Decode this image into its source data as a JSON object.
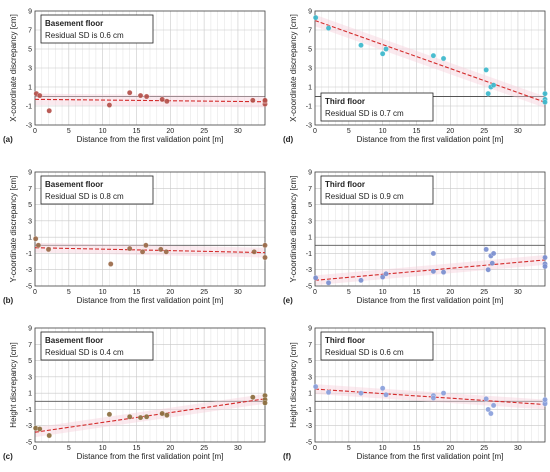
{
  "chart_data": [
    {
      "panel": "(a)",
      "type": "scatter",
      "xlabel": "Distance from the first validation point [m]",
      "ylabel": "X-coordinate discrepancy [cm]",
      "xlim": [
        0,
        34
      ],
      "ylim": [
        -3,
        9
      ],
      "xticks": [
        0,
        5,
        10,
        15,
        20,
        25,
        30
      ],
      "yticks": [
        -3,
        -1,
        1,
        3,
        5,
        7,
        9
      ],
      "grid": true,
      "annotation": {
        "title": "Basement floor",
        "subtitle": "Residual SD is 0.6 cm"
      },
      "point_color": "#b5504a",
      "points": [
        [
          0.2,
          0.3
        ],
        [
          0.7,
          0.1
        ],
        [
          2.1,
          -1.5
        ],
        [
          11.0,
          -0.9
        ],
        [
          14.0,
          0.4
        ],
        [
          15.6,
          0.1
        ],
        [
          16.5,
          0.0
        ],
        [
          18.8,
          -0.3
        ],
        [
          19.5,
          -0.5
        ],
        [
          32.2,
          -0.4
        ],
        [
          34.0,
          -0.8
        ],
        [
          34.0,
          -0.5
        ],
        [
          34.0,
          -0.4
        ]
      ],
      "trend": [
        [
          0,
          -0.3
        ],
        [
          34,
          -0.55
        ]
      ]
    },
    {
      "panel": "(b)",
      "type": "scatter",
      "xlabel": "Distance from the first validation point [m]",
      "ylabel": "Y-coordinate discrepancy [cm]",
      "xlim": [
        0,
        34
      ],
      "ylim": [
        -5,
        9
      ],
      "xticks": [
        0,
        5,
        10,
        15,
        20,
        25,
        30
      ],
      "yticks": [
        -5,
        -3,
        -1,
        1,
        3,
        5,
        7,
        9
      ],
      "grid": true,
      "annotation": {
        "title": "Basement floor",
        "subtitle": "Residual SD is 0.8 cm"
      },
      "point_color": "#9b6a48",
      "points": [
        [
          0.1,
          0.8
        ],
        [
          0.5,
          0.0
        ],
        [
          2.0,
          -0.5
        ],
        [
          11.2,
          -2.3
        ],
        [
          14.0,
          -0.4
        ],
        [
          15.9,
          -0.8
        ],
        [
          16.4,
          0.0
        ],
        [
          18.6,
          -0.5
        ],
        [
          19.4,
          -0.8
        ],
        [
          32.4,
          -0.8
        ],
        [
          34.0,
          0.0
        ],
        [
          34.0,
          -1.5
        ]
      ],
      "trend": [
        [
          0,
          -0.3
        ],
        [
          34,
          -0.9
        ]
      ]
    },
    {
      "panel": "(c)",
      "type": "scatter",
      "xlabel": "Distance from the first validation point [m]",
      "ylabel": "Height discrepancy [cm]",
      "xlim": [
        0,
        34
      ],
      "ylim": [
        -5,
        9
      ],
      "xticks": [
        0,
        5,
        10,
        15,
        20,
        25,
        30
      ],
      "yticks": [
        -5,
        -3,
        -1,
        1,
        3,
        5,
        7,
        9
      ],
      "grid": true,
      "annotation": {
        "title": "Basement floor",
        "subtitle": "Residual SD is 0.4 cm"
      },
      "point_color": "#8c6e3e",
      "points": [
        [
          0.1,
          -3.3
        ],
        [
          0.7,
          -3.4
        ],
        [
          2.1,
          -4.2
        ],
        [
          11.0,
          -1.6
        ],
        [
          14.0,
          -1.9
        ],
        [
          15.6,
          -2.0
        ],
        [
          16.5,
          -1.9
        ],
        [
          18.8,
          -1.5
        ],
        [
          19.5,
          -1.7
        ],
        [
          32.2,
          0.5
        ],
        [
          34.0,
          0.7
        ],
        [
          34.0,
          0.2
        ],
        [
          34.0,
          -0.2
        ]
      ],
      "trend": [
        [
          0,
          -3.8
        ],
        [
          34,
          0.3
        ]
      ]
    },
    {
      "panel": "(d)",
      "type": "scatter",
      "xlabel": "Distance from the first validation point [m]",
      "ylabel": "X-coordinate discrepancy [cm]",
      "xlim": [
        0,
        34
      ],
      "ylim": [
        -3,
        9
      ],
      "xticks": [
        0,
        5,
        10,
        15,
        20,
        25,
        30
      ],
      "yticks": [
        -3,
        -1,
        1,
        3,
        5,
        7,
        9
      ],
      "grid": true,
      "annotation": {
        "title": "Third floor",
        "subtitle": "Residual SD is 0.7 cm"
      },
      "point_color": "#3bb8cc",
      "points": [
        [
          0.1,
          8.3
        ],
        [
          2.0,
          7.2
        ],
        [
          6.8,
          5.4
        ],
        [
          10.0,
          4.5
        ],
        [
          10.5,
          5.0
        ],
        [
          17.5,
          4.3
        ],
        [
          19.0,
          4.0
        ],
        [
          25.3,
          2.8
        ],
        [
          26.0,
          1.0
        ],
        [
          26.4,
          1.2
        ],
        [
          25.6,
          0.3
        ],
        [
          34.0,
          0.3
        ],
        [
          34.0,
          -0.3
        ],
        [
          34.0,
          -0.6
        ]
      ],
      "trend": [
        [
          0,
          8.0
        ],
        [
          34,
          -0.6
        ]
      ]
    },
    {
      "panel": "(e)",
      "type": "scatter",
      "xlabel": "Distance from the first validation point [m]",
      "ylabel": "Y-coordinate discrepancy [cm]",
      "xlim": [
        0,
        34
      ],
      "ylim": [
        -5,
        9
      ],
      "xticks": [
        0,
        5,
        10,
        15,
        20,
        25,
        30
      ],
      "yticks": [
        -5,
        -3,
        -1,
        1,
        3,
        5,
        7,
        9
      ],
      "grid": true,
      "annotation": {
        "title": "Third floor",
        "subtitle": "Residual SD is 0.9 cm"
      },
      "point_color": "#7a8fd0",
      "points": [
        [
          0.1,
          -4.0
        ],
        [
          2.0,
          -4.6
        ],
        [
          6.8,
          -4.3
        ],
        [
          10.0,
          -3.9
        ],
        [
          10.5,
          -3.5
        ],
        [
          17.5,
          -1.0
        ],
        [
          17.5,
          -3.2
        ],
        [
          19.0,
          -3.3
        ],
        [
          25.3,
          -0.5
        ],
        [
          26.0,
          -1.3
        ],
        [
          26.4,
          -1.0
        ],
        [
          25.6,
          -3.0
        ],
        [
          26.2,
          -2.2
        ],
        [
          34.0,
          -1.5
        ],
        [
          34.0,
          -2.3
        ],
        [
          34.0,
          -2.6
        ]
      ],
      "trend": [
        [
          0,
          -4.3
        ],
        [
          34,
          -1.8
        ]
      ]
    },
    {
      "panel": "(f)",
      "type": "scatter",
      "xlabel": "Distance from the first validation point [m]",
      "ylabel": "Height discrepancy [cm]",
      "xlim": [
        0,
        34
      ],
      "ylim": [
        -5,
        9
      ],
      "xticks": [
        0,
        5,
        10,
        15,
        20,
        25,
        30
      ],
      "yticks": [
        -5,
        -3,
        -1,
        1,
        3,
        5,
        7,
        9
      ],
      "grid": true,
      "annotation": {
        "title": "Third floor",
        "subtitle": "Residual SD is 0.6 cm"
      },
      "point_color": "#8aa0dc",
      "points": [
        [
          0.1,
          1.8
        ],
        [
          2.0,
          1.1
        ],
        [
          6.8,
          1.0
        ],
        [
          10.0,
          1.6
        ],
        [
          10.5,
          0.8
        ],
        [
          17.5,
          0.7
        ],
        [
          17.5,
          0.4
        ],
        [
          19.0,
          1.0
        ],
        [
          25.3,
          0.3
        ],
        [
          25.6,
          -1.0
        ],
        [
          26.0,
          -1.5
        ],
        [
          26.4,
          -0.5
        ],
        [
          34.0,
          -0.1
        ],
        [
          34.0,
          -0.3
        ],
        [
          34.0,
          0.2
        ]
      ],
      "trend": [
        [
          0,
          1.5
        ],
        [
          34,
          -0.4
        ]
      ]
    }
  ]
}
